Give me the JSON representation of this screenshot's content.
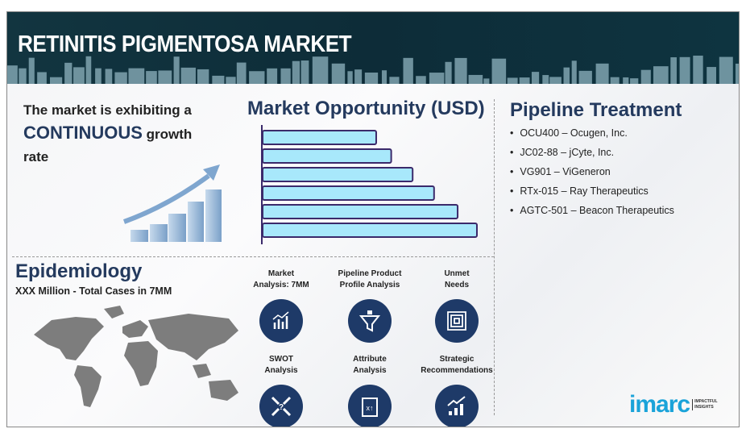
{
  "header": {
    "title": "RETINITIS PIGMENTOSA MARKET"
  },
  "growth": {
    "line1": "The market is exhibiting a",
    "emphasis": "CONTINUOUS",
    "line2": "growth",
    "line3": "rate"
  },
  "market_opportunity": {
    "title": "Market Opportunity (USD)"
  },
  "chart_data": {
    "type": "bar",
    "orientation": "horizontal",
    "title": "Market Opportunity (USD)",
    "values": [
      53,
      60,
      70,
      80,
      91,
      100
    ],
    "bar_color": "#a8e8fb",
    "border_color": "#3b2a6b"
  },
  "pipeline": {
    "title": "Pipeline Treatment",
    "items": [
      "OCU400 – Ocugen, Inc.",
      "JC02-88 – jCyte, Inc.",
      "VG901 – ViGeneron",
      "RTx-015 – Ray Therapeutics",
      "AGTC-501 – Beacon Therapeutics"
    ]
  },
  "epidemiology": {
    "title": "Epidemiology",
    "subtitle": "XXX Million - Total Cases in 7MM"
  },
  "features": [
    {
      "line1": "Market",
      "line2": "Analysis: 7MM",
      "icon": "chart-analysis-icon"
    },
    {
      "line1": "Pipeline Product",
      "line2": "Profile Analysis",
      "icon": "funnel-icon"
    },
    {
      "line1": "Unmet",
      "line2": "Needs",
      "icon": "maze-icon"
    },
    {
      "line1": "SWOT",
      "line2": "Analysis",
      "icon": "swot-arrows-icon"
    },
    {
      "line1": "Attribute",
      "line2": "Analysis",
      "icon": "clipboard-strategy-icon"
    },
    {
      "line1": "Strategic",
      "line2": "Recommendations",
      "icon": "growth-chart-icon"
    }
  ],
  "logo": {
    "name": "imarc",
    "tagline1": "IMPACTFUL",
    "tagline2": "INSIGHTS"
  },
  "colors": {
    "header": "#0f2f3b",
    "navy": "#243a5e",
    "icon_circle": "#1e3a68",
    "logo": "#1aa3d9"
  }
}
